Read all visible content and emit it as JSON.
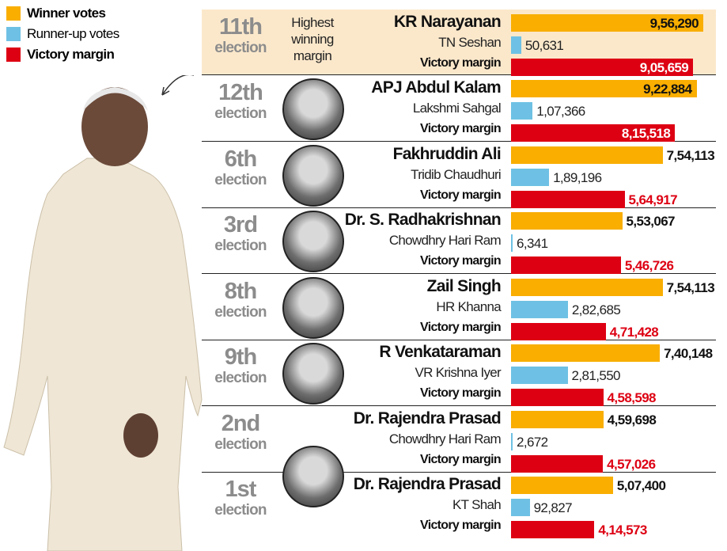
{
  "legend": [
    {
      "label": "Winner votes",
      "color": "#f9ae00"
    },
    {
      "label": "Runner-up votes",
      "color": "#6ec1e4"
    },
    {
      "label": "Victory margin",
      "color": "#dd0013"
    }
  ],
  "highlight_note": "Highest winning margin",
  "election_word": "election",
  "margin_label": "Victory margin",
  "chart_data": {
    "type": "bar",
    "orientation": "horizontal",
    "series_names": [
      "Winner votes",
      "Runner-up votes",
      "Victory margin"
    ],
    "colors": {
      "winner": "#f9ae00",
      "runner": "#6ec1e4",
      "margin": "#dd0013"
    },
    "rows": [
      {
        "election": "11th",
        "winner": "KR Narayanan",
        "runner": "TN Seshan",
        "winner_votes": 956290,
        "runner_votes": 50631,
        "margin": 905659,
        "winner_label": "9,56,290",
        "runner_label": "50,631",
        "margin_label": "9,05,659",
        "highlight": true
      },
      {
        "election": "12th",
        "winner": "APJ Abdul Kalam",
        "runner": "Lakshmi Sahgal",
        "winner_votes": 922884,
        "runner_votes": 107366,
        "margin": 815518,
        "winner_label": "9,22,884",
        "runner_label": "1,07,366",
        "margin_label": "8,15,518"
      },
      {
        "election": "6th",
        "winner": "Fakhruddin Ali",
        "runner": "Tridib Chaudhuri",
        "winner_votes": 754113,
        "runner_votes": 189196,
        "margin": 564917,
        "winner_label": "7,54,113",
        "runner_label": "1,89,196",
        "margin_label": "5,64,917"
      },
      {
        "election": "3rd",
        "winner": "Dr. S. Radhakrishnan",
        "runner": "Chowdhry Hari Ram",
        "winner_votes": 553067,
        "runner_votes": 6341,
        "margin": 546726,
        "winner_label": "5,53,067",
        "runner_label": "6,341",
        "margin_label": "5,46,726"
      },
      {
        "election": "8th",
        "winner": "Zail Singh",
        "runner": "HR Khanna",
        "winner_votes": 754113,
        "runner_votes": 282685,
        "margin": 471428,
        "winner_label": "7,54,113",
        "runner_label": "2,82,685",
        "margin_label": "4,71,428"
      },
      {
        "election": "9th",
        "winner": "R Venkataraman",
        "runner": "VR Krishna Iyer",
        "winner_votes": 740148,
        "runner_votes": 281550,
        "margin": 458598,
        "winner_label": "7,40,148",
        "runner_label": "2,81,550",
        "margin_label": "4,58,598"
      },
      {
        "election": "2nd",
        "winner": "Dr. Rajendra Prasad",
        "runner": "Chowdhry Hari Ram",
        "winner_votes": 459698,
        "runner_votes": 2672,
        "margin": 457026,
        "winner_label": "4,59,698",
        "runner_label": "2,672",
        "margin_label": "4,57,026"
      },
      {
        "election": "1st",
        "winner": "Dr. Rajendra Prasad",
        "runner": "KT Shah",
        "winner_votes": 507400,
        "runner_votes": 92827,
        "margin": 414573,
        "winner_label": "5,07,400",
        "runner_label": "92,827",
        "margin_label": "4,14,573"
      }
    ]
  }
}
